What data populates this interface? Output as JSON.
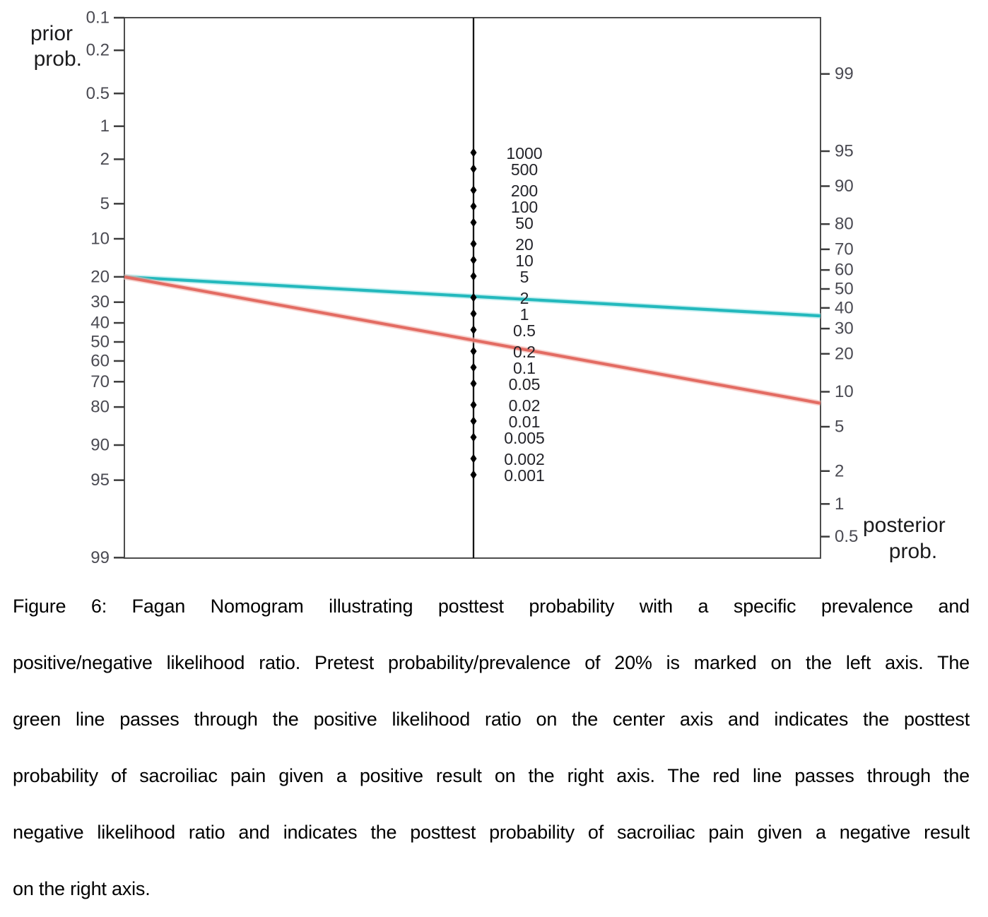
{
  "figure": {
    "caption_lines": [
      "Figure 6: Fagan Nomogram illustrating posttest probability with a specific prevalence and",
      "positive/negative likelihood ratio. Pretest probability/prevalence of 20% is marked on the left axis. The",
      "green line passes through the positive likelihood ratio on the center axis and indicates the posttest",
      "probability of sacroiliac pain given a positive result on the right axis. The red line passes through the",
      "negative likelihood ratio and indicates the posttest probability of sacroiliac pain given a negative result",
      "on the right axis."
    ]
  },
  "chart_data": {
    "type": "line",
    "subtype": "fagan-nomogram",
    "title": "Fagan Nomogram",
    "left_axis": {
      "title_lines": [
        "prior",
        "prob."
      ],
      "scale": "log-odds percent, descending top to bottom",
      "ticks": [
        "0.1",
        "0.2",
        "0.5",
        "1",
        "2",
        "5",
        "10",
        "20",
        "30",
        "40",
        "50",
        "60",
        "70",
        "80",
        "90",
        "95",
        "99"
      ]
    },
    "center_axis": {
      "scale": "log likelihood ratio, descending top to bottom",
      "ticks": [
        "1000",
        "500",
        "200",
        "100",
        "50",
        "20",
        "10",
        "5",
        "2",
        "1",
        "0.5",
        "0.2",
        "0.1",
        "0.05",
        "0.02",
        "0.01",
        "0.005",
        "0.002",
        "0.001"
      ]
    },
    "right_axis": {
      "title_lines": [
        "posterior",
        "prob."
      ],
      "scale": "log-odds percent, ascending top to bottom",
      "ticks": [
        "99",
        "95",
        "90",
        "80",
        "70",
        "60",
        "50",
        "40",
        "30",
        "20",
        "10",
        "5",
        "2",
        "1",
        "0.5"
      ]
    },
    "lines": [
      {
        "name": "positive-likelihood-line",
        "color": "#24b9bd",
        "glow": "#a5e7e9",
        "prior_percent": 20,
        "likelihood_ratio": 2,
        "posterior_percent": 36
      },
      {
        "name": "negative-likelihood-line",
        "color": "#e36c63",
        "glow": "#f4b6b0",
        "prior_percent": 20,
        "likelihood_ratio": 0.3,
        "posterior_percent": 8
      }
    ],
    "colors": {
      "plot_border": "#4d4d4d",
      "center_axis": "#141414",
      "tick_mark": "#3c3c3c",
      "tick_label": "#4a4a52",
      "center_tick_label": "#232329",
      "axis_title": "#1b1b1d",
      "marker": "#000000",
      "background": "#ffffff"
    }
  }
}
